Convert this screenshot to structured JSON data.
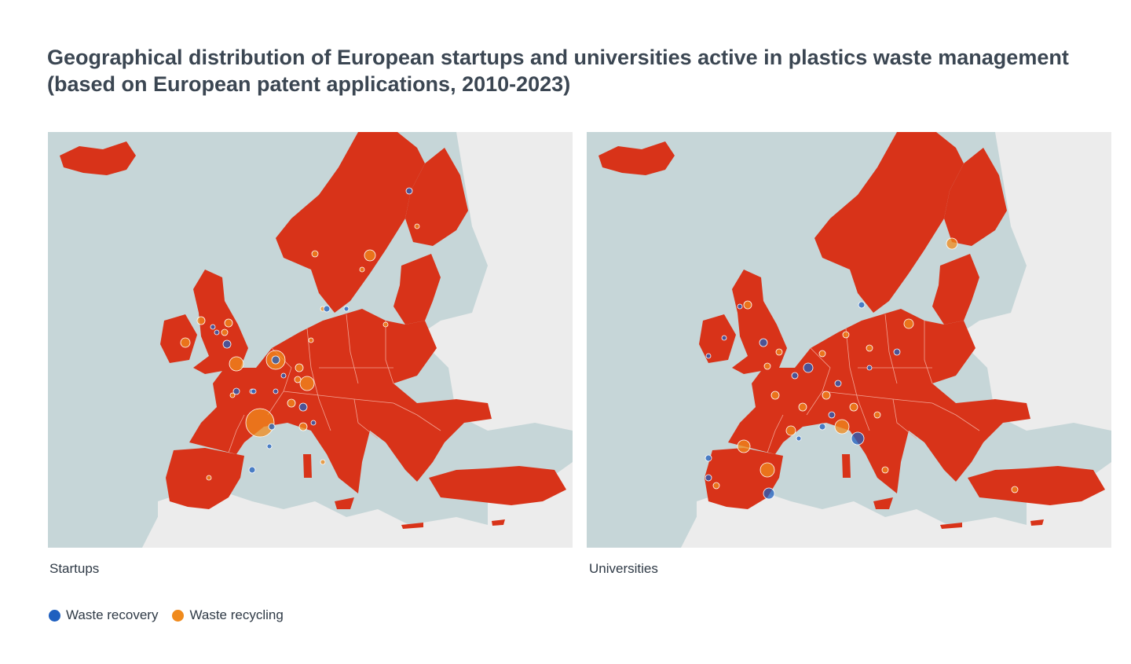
{
  "title": {
    "line1": "Geographical distribution of European startups and universities active in plastics waste management",
    "line2": "(based on European patent applications, 2010-2023)"
  },
  "panels": [
    {
      "caption": "Startups"
    },
    {
      "caption": "Universities"
    }
  ],
  "legend": {
    "items": [
      {
        "label": "Waste recovery",
        "color": "#1f5fbf"
      },
      {
        "label": "Waste recycling",
        "color": "#f08a1c"
      }
    ]
  },
  "colors": {
    "sea": "#c6d6d8",
    "non_european_land": "#ececec",
    "european_land": "#d83319",
    "border": "#f2a393",
    "recovery": "#1f5fbf",
    "recycling": "#f08a1c"
  }
}
